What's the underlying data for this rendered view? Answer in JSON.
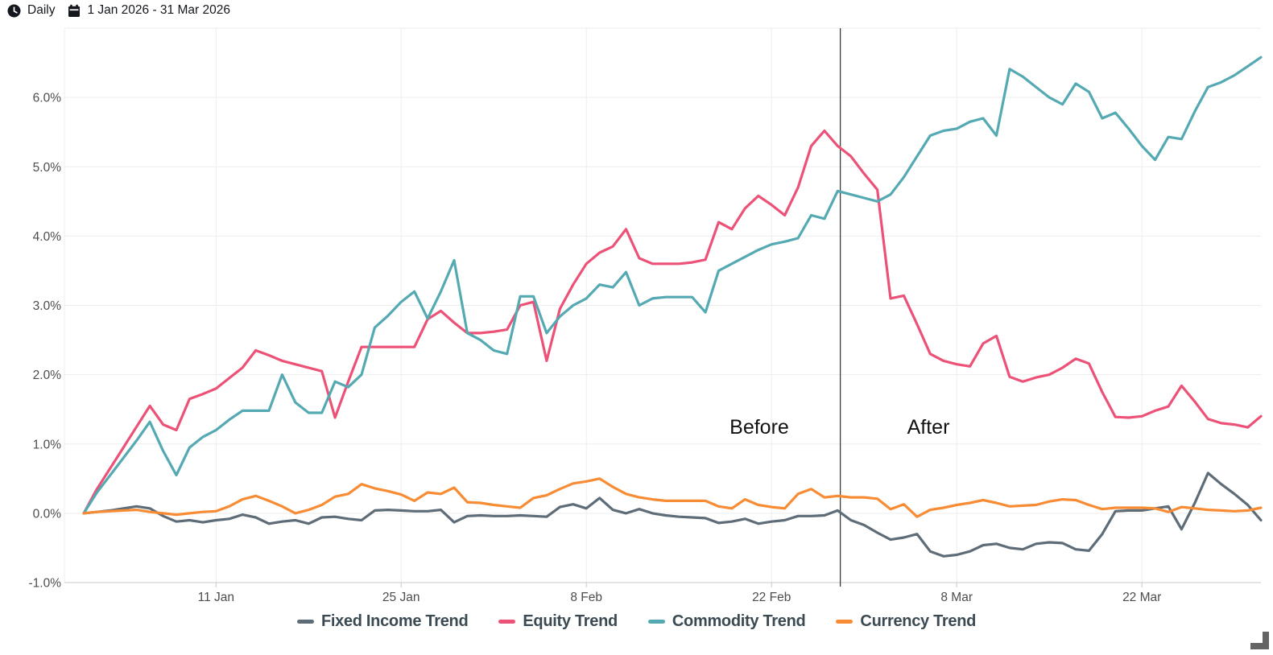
{
  "header": {
    "frequency_label": "Daily",
    "date_range_label": "1 Jan 2026 - 31 Mar 2026"
  },
  "annotations": {
    "before_label": "Before",
    "after_label": "After",
    "divider_at_day": 57.2
  },
  "chart_data": {
    "type": "line",
    "title": "",
    "grid": true,
    "legend_position": "bottom",
    "x_axis": {
      "unit": "date",
      "num_days": 90,
      "ticks": [
        {
          "day": 10,
          "label": "11 Jan"
        },
        {
          "day": 24,
          "label": "25 Jan"
        },
        {
          "day": 38,
          "label": "8 Feb"
        },
        {
          "day": 52,
          "label": "22 Feb"
        },
        {
          "day": 66,
          "label": "8 Mar"
        },
        {
          "day": 80,
          "label": "22 Mar"
        }
      ]
    },
    "y_axis": {
      "unit": "percent",
      "range": [
        -1,
        7
      ],
      "ticks": [
        {
          "value": -1,
          "label": "-1.0%"
        },
        {
          "value": 0,
          "label": "0.0%"
        },
        {
          "value": 1,
          "label": "1.0%"
        },
        {
          "value": 2,
          "label": "2.0%"
        },
        {
          "value": 3,
          "label": "3.0%"
        },
        {
          "value": 4,
          "label": "4.0%"
        },
        {
          "value": 5,
          "label": "5.0%"
        },
        {
          "value": 6,
          "label": "6.0%"
        }
      ]
    },
    "series": [
      {
        "name": "Fixed Income Trend",
        "color": "#5e6c78",
        "values": [
          0,
          0.02,
          0.04,
          0.07,
          0.1,
          0.07,
          -0.04,
          -0.12,
          -0.1,
          -0.13,
          -0.1,
          -0.08,
          -0.02,
          -0.06,
          -0.15,
          -0.12,
          -0.1,
          -0.15,
          -0.06,
          -0.05,
          -0.08,
          -0.1,
          0.04,
          0.05,
          0.04,
          0.03,
          0.03,
          0.05,
          -0.13,
          -0.04,
          -0.03,
          -0.04,
          -0.04,
          -0.03,
          -0.04,
          -0.05,
          0.09,
          0.13,
          0.07,
          0.22,
          0.05,
          0.0,
          0.06,
          0.0,
          -0.03,
          -0.05,
          -0.06,
          -0.07,
          -0.14,
          -0.12,
          -0.08,
          -0.15,
          -0.12,
          -0.1,
          -0.04,
          -0.04,
          -0.03,
          0.04,
          -0.1,
          -0.17,
          -0.28,
          -0.38,
          -0.35,
          -0.3,
          -0.55,
          -0.62,
          -0.6,
          -0.55,
          -0.46,
          -0.44,
          -0.5,
          -0.52,
          -0.44,
          -0.42,
          -0.43,
          -0.52,
          -0.54,
          -0.3,
          0.03,
          0.04,
          0.04,
          0.07,
          0.1,
          -0.23,
          0.15,
          0.58,
          0.42,
          0.28,
          0.12,
          -0.1
        ]
      },
      {
        "name": "Equity Trend",
        "color": "#ec5277",
        "values": [
          0,
          0.35,
          0.65,
          0.95,
          1.25,
          1.55,
          1.28,
          1.2,
          1.65,
          1.72,
          1.8,
          1.95,
          2.1,
          2.35,
          2.28,
          2.2,
          2.15,
          2.1,
          2.05,
          1.38,
          1.9,
          2.4,
          2.4,
          2.4,
          2.4,
          2.4,
          2.8,
          2.92,
          2.75,
          2.6,
          2.6,
          2.62,
          2.65,
          3.0,
          3.05,
          2.2,
          2.95,
          3.3,
          3.6,
          3.76,
          3.85,
          4.1,
          3.68,
          3.6,
          3.6,
          3.6,
          3.62,
          3.66,
          4.2,
          4.1,
          4.4,
          4.58,
          4.45,
          4.3,
          4.7,
          5.3,
          5.52,
          5.3,
          5.15,
          4.9,
          4.67,
          3.1,
          3.14,
          2.73,
          2.3,
          2.2,
          2.15,
          2.12,
          2.45,
          2.56,
          1.97,
          1.9,
          1.96,
          2.0,
          2.1,
          2.23,
          2.16,
          1.75,
          1.39,
          1.38,
          1.4,
          1.48,
          1.54,
          1.84,
          1.61,
          1.36,
          1.3,
          1.28,
          1.24,
          1.4
        ]
      },
      {
        "name": "Commodity Trend",
        "color": "#54a9b2",
        "values": [
          0,
          0.3,
          0.55,
          0.8,
          1.05,
          1.32,
          0.9,
          0.55,
          0.95,
          1.1,
          1.2,
          1.35,
          1.48,
          1.48,
          1.48,
          2.0,
          1.6,
          1.45,
          1.45,
          1.9,
          1.82,
          2.0,
          2.68,
          2.85,
          3.05,
          3.2,
          2.81,
          3.2,
          3.65,
          2.6,
          2.5,
          2.35,
          2.3,
          3.13,
          3.13,
          2.6,
          2.84,
          3.0,
          3.1,
          3.3,
          3.26,
          3.48,
          3.0,
          3.1,
          3.12,
          3.12,
          3.12,
          2.9,
          3.5,
          3.6,
          3.7,
          3.8,
          3.88,
          3.92,
          3.97,
          4.3,
          4.25,
          4.65,
          4.6,
          4.55,
          4.5,
          4.6,
          4.85,
          5.15,
          5.45,
          5.52,
          5.55,
          5.65,
          5.7,
          5.45,
          6.41,
          6.3,
          6.15,
          6.0,
          5.9,
          6.2,
          6.08,
          5.7,
          5.78,
          5.55,
          5.3,
          5.1,
          5.43,
          5.4,
          5.8,
          6.15,
          6.22,
          6.32,
          6.45,
          6.58
        ]
      },
      {
        "name": "Currency Trend",
        "color": "#f78c35",
        "values": [
          0,
          0.02,
          0.03,
          0.04,
          0.05,
          0.02,
          0.0,
          -0.02,
          0.0,
          0.02,
          0.03,
          0.1,
          0.2,
          0.25,
          0.18,
          0.1,
          0.0,
          0.05,
          0.12,
          0.24,
          0.28,
          0.42,
          0.36,
          0.32,
          0.27,
          0.18,
          0.3,
          0.28,
          0.37,
          0.16,
          0.15,
          0.12,
          0.1,
          0.08,
          0.22,
          0.26,
          0.35,
          0.43,
          0.46,
          0.5,
          0.38,
          0.28,
          0.23,
          0.2,
          0.18,
          0.18,
          0.18,
          0.18,
          0.1,
          0.07,
          0.2,
          0.12,
          0.09,
          0.07,
          0.28,
          0.35,
          0.23,
          0.25,
          0.23,
          0.23,
          0.21,
          0.06,
          0.13,
          -0.05,
          0.05,
          0.08,
          0.12,
          0.15,
          0.19,
          0.15,
          0.1,
          0.11,
          0.12,
          0.17,
          0.2,
          0.19,
          0.12,
          0.06,
          0.08,
          0.08,
          0.08,
          0.07,
          0.02,
          0.09,
          0.07,
          0.05,
          0.04,
          0.03,
          0.04,
          0.08
        ]
      }
    ]
  }
}
